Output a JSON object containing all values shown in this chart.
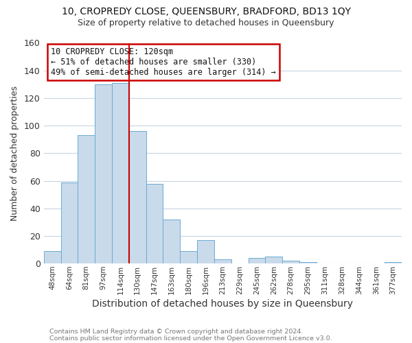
{
  "title1": "10, CROPREDY CLOSE, QUEENSBURY, BRADFORD, BD13 1QY",
  "title2": "Size of property relative to detached houses in Queensbury",
  "xlabel": "Distribution of detached houses by size in Queensbury",
  "ylabel": "Number of detached properties",
  "bar_labels": [
    "48sqm",
    "64sqm",
    "81sqm",
    "97sqm",
    "114sqm",
    "130sqm",
    "147sqm",
    "163sqm",
    "180sqm",
    "196sqm",
    "213sqm",
    "229sqm",
    "245sqm",
    "262sqm",
    "278sqm",
    "295sqm",
    "311sqm",
    "328sqm",
    "344sqm",
    "361sqm",
    "377sqm"
  ],
  "bar_values": [
    9,
    59,
    93,
    130,
    131,
    96,
    58,
    32,
    9,
    17,
    3,
    0,
    4,
    5,
    2,
    1,
    0,
    0,
    0,
    0,
    1
  ],
  "bar_color": "#c9daea",
  "bar_edge_color": "#6aaad4",
  "grid_color": "#c8d4e4",
  "background_color": "#ffffff",
  "vline_x": 4.5,
  "vline_color": "#cc0000",
  "annotation_line1": "10 CROPREDY CLOSE: 120sqm",
  "annotation_line2": "← 51% of detached houses are smaller (330)",
  "annotation_line3": "49% of semi-detached houses are larger (314) →",
  "annotation_box_color": "#cc0000",
  "ylim": [
    0,
    160
  ],
  "yticks": [
    0,
    20,
    40,
    60,
    80,
    100,
    120,
    140,
    160
  ],
  "footer1": "Contains HM Land Registry data © Crown copyright and database right 2024.",
  "footer2": "Contains public sector information licensed under the Open Government Licence v3.0."
}
